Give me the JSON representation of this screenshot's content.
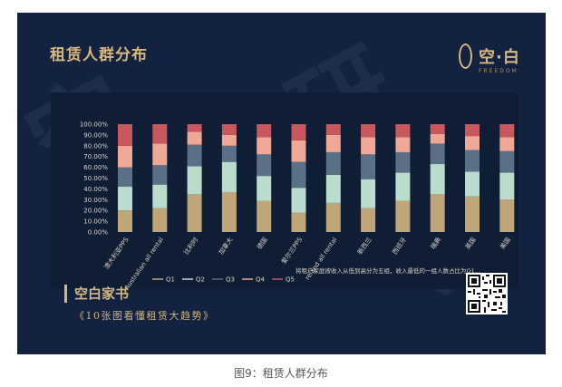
{
  "header": {
    "title": "租赁人群分布",
    "logo_text": "空·白",
    "logo_sub": "FREEDOM"
  },
  "note": "将租户家庭按收入从低到高分为五组，收入最低的一组人数占比为Q1…",
  "footer": {
    "series_title": "空白家书",
    "series_subtitle": "《10张图看懂租赁大趋势》"
  },
  "caption": "图9：租赁人群分布",
  "watermark": "空白研究",
  "colors": {
    "panel": "#122240",
    "accent": "#d8b77d",
    "Q1": "#bfa679",
    "Q2": "#b9dccd",
    "Q3": "#5b6f86",
    "Q4": "#efa896",
    "Q5": "#c9585e"
  },
  "chart_data": {
    "type": "bar",
    "stacked": true,
    "categories": [
      "澳大利亚PPS",
      "Australian all rental",
      "比利时",
      "加拿大",
      "德国",
      "爱尔兰PPS",
      "reland all rental",
      "新西兰",
      "西班牙",
      "瑞典",
      "英国",
      "美国"
    ],
    "series": [
      {
        "name": "Q1",
        "values": [
          20,
          22,
          35,
          37,
          29,
          18,
          27,
          22,
          29,
          35,
          33,
          30
        ]
      },
      {
        "name": "Q2",
        "values": [
          22,
          22,
          26,
          28,
          23,
          23,
          26,
          27,
          26,
          28,
          23,
          25
        ]
      },
      {
        "name": "Q3",
        "values": [
          18,
          18,
          20,
          15,
          20,
          24,
          21,
          23,
          19,
          19,
          20,
          20
        ]
      },
      {
        "name": "Q4",
        "values": [
          20,
          20,
          12,
          10,
          16,
          20,
          16,
          16,
          14,
          9,
          13,
          13
        ]
      },
      {
        "name": "Q5",
        "values": [
          20,
          18,
          7,
          10,
          12,
          15,
          10,
          12,
          12,
          9,
          11,
          12
        ]
      }
    ],
    "yticks": [
      "0.00%",
      "10.00%",
      "20.00%",
      "30.00%",
      "40.00%",
      "50.00%",
      "60.00%",
      "70.00%",
      "80.00%",
      "90.00%",
      "100.00%"
    ],
    "ylim": [
      0,
      100
    ],
    "legend": [
      "Q1",
      "Q2",
      "Q3",
      "Q4",
      "Q5"
    ],
    "legend_position": "bottom-left",
    "grid": false
  }
}
